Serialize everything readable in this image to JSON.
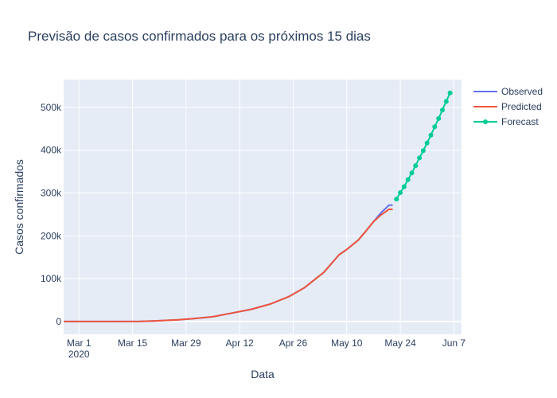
{
  "chart_data": {
    "type": "line",
    "title": "Previsão de casos confirmados para os próximos 15 dias",
    "xlabel": "Data",
    "ylabel": "Casos confirmados",
    "x_start_date": "2020-02-26",
    "xlim": [
      "2020-02-26",
      "2020-06-09"
    ],
    "ylim": [
      -30000,
      565000
    ],
    "x_ticks": [
      {
        "date": "2020-03-01",
        "label": "Mar 1",
        "sub": "2020"
      },
      {
        "date": "2020-03-15",
        "label": "Mar 15"
      },
      {
        "date": "2020-03-29",
        "label": "Mar 29"
      },
      {
        "date": "2020-04-12",
        "label": "Apr 12"
      },
      {
        "date": "2020-04-26",
        "label": "Apr 26"
      },
      {
        "date": "2020-05-10",
        "label": "May 10"
      },
      {
        "date": "2020-05-24",
        "label": "May 24"
      },
      {
        "date": "2020-06-07",
        "label": "Jun 7"
      }
    ],
    "y_ticks": [
      {
        "value": 0,
        "label": "0"
      },
      {
        "value": 100000,
        "label": "100k"
      },
      {
        "value": 200000,
        "label": "200k"
      },
      {
        "value": 300000,
        "label": "300k"
      },
      {
        "value": 400000,
        "label": "400k"
      },
      {
        "value": 500000,
        "label": "500k"
      }
    ],
    "grid": true,
    "legend_position": "top-right",
    "series": [
      {
        "name": "Observed",
        "color": "#636efa",
        "mode": "line",
        "x": [
          "2020-02-26",
          "2020-03-07",
          "2020-03-17",
          "2020-03-21",
          "2020-03-27",
          "2020-03-31",
          "2020-04-05",
          "2020-04-10",
          "2020-04-15",
          "2020-04-20",
          "2020-04-25",
          "2020-04-29",
          "2020-05-04",
          "2020-05-08",
          "2020-05-10",
          "2020-05-13",
          "2020-05-15",
          "2020-05-17",
          "2020-05-19",
          "2020-05-21",
          "2020-05-22"
        ],
        "y": [
          0,
          0,
          300,
          1500,
          3900,
          6800,
          11000,
          19600,
          28300,
          40600,
          58700,
          79400,
          114700,
          155900,
          168300,
          190000,
          211200,
          233100,
          254200,
          271600,
          271600
        ]
      },
      {
        "name": "Predicted",
        "color": "#ef553b",
        "mode": "line",
        "x": [
          "2020-02-26",
          "2020-03-07",
          "2020-03-17",
          "2020-03-21",
          "2020-03-27",
          "2020-03-31",
          "2020-04-05",
          "2020-04-10",
          "2020-04-15",
          "2020-04-20",
          "2020-04-25",
          "2020-04-29",
          "2020-05-04",
          "2020-05-08",
          "2020-05-10",
          "2020-05-13",
          "2020-05-15",
          "2020-05-17",
          "2020-05-19",
          "2020-05-21",
          "2020-05-22"
        ],
        "y": [
          0,
          0,
          300,
          1500,
          3900,
          6800,
          11000,
          19600,
          28300,
          40600,
          58700,
          79400,
          114700,
          155900,
          168300,
          190000,
          211200,
          233100,
          249000,
          262000,
          262000
        ]
      },
      {
        "name": "Forecast",
        "color": "#00cc96",
        "mode": "lines+markers",
        "x": [
          "2020-05-23",
          "2020-05-24",
          "2020-05-25",
          "2020-05-26",
          "2020-05-27",
          "2020-05-28",
          "2020-05-29",
          "2020-05-30",
          "2020-05-31",
          "2020-06-01",
          "2020-06-02",
          "2020-06-03",
          "2020-06-04",
          "2020-06-05",
          "2020-06-06"
        ],
        "y": [
          286000,
          301000,
          315000,
          331000,
          347000,
          364000,
          382000,
          399000,
          417000,
          435000,
          455000,
          474000,
          494000,
          514000,
          534000
        ]
      }
    ]
  }
}
